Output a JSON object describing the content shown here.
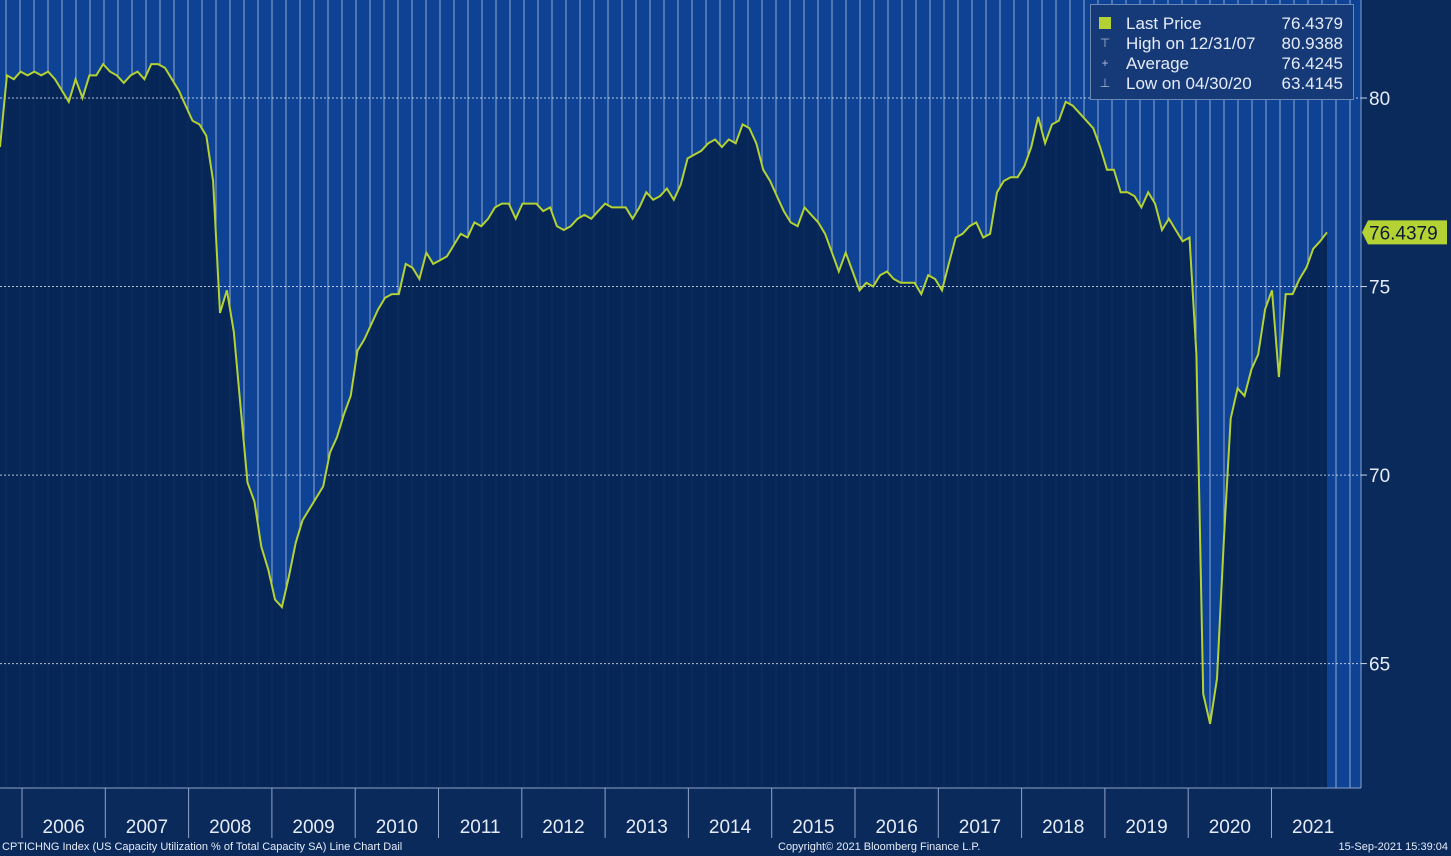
{
  "chart_data": {
    "type": "area",
    "series": [
      {
        "name": "Last Price",
        "color": "#b4d233",
        "values": [
          78.7,
          80.6,
          80.5,
          80.7,
          80.6,
          80.7,
          80.6,
          80.7,
          80.5,
          80.2,
          79.9,
          80.5,
          80.0,
          80.6,
          80.6,
          80.9,
          80.7,
          80.6,
          80.4,
          80.6,
          80.7,
          80.5,
          80.9,
          80.9,
          80.8,
          80.5,
          80.2,
          79.8,
          79.4,
          79.3,
          79.0,
          77.8,
          74.3,
          74.9,
          73.8,
          71.8,
          69.8,
          69.3,
          68.1,
          67.5,
          66.7,
          66.5,
          67.3,
          68.2,
          68.8,
          69.1,
          69.4,
          69.7,
          70.6,
          71.0,
          71.6,
          72.1,
          73.3,
          73.6,
          74.0,
          74.4,
          74.7,
          74.8,
          74.8,
          75.6,
          75.5,
          75.2,
          75.9,
          75.6,
          75.7,
          75.8,
          76.1,
          76.4,
          76.3,
          76.7,
          76.6,
          76.8,
          77.1,
          77.2,
          77.2,
          76.8,
          77.2,
          77.2,
          77.2,
          77.0,
          77.1,
          76.6,
          76.5,
          76.6,
          76.8,
          76.9,
          76.8,
          77.0,
          77.2,
          77.1,
          77.1,
          77.1,
          76.8,
          77.1,
          77.5,
          77.3,
          77.4,
          77.6,
          77.3,
          77.7,
          78.4,
          78.5,
          78.6,
          78.8,
          78.9,
          78.7,
          78.9,
          78.8,
          79.3,
          79.2,
          78.8,
          78.1,
          77.8,
          77.4,
          77.0,
          76.7,
          76.6,
          77.1,
          76.9,
          76.7,
          76.4,
          75.9,
          75.4,
          75.9,
          75.4,
          74.9,
          75.1,
          75.0,
          75.3,
          75.4,
          75.2,
          75.1,
          75.1,
          75.1,
          74.8,
          75.3,
          75.2,
          74.9,
          75.6,
          76.3,
          76.4,
          76.6,
          76.7,
          76.3,
          76.4,
          77.5,
          77.8,
          77.9,
          77.9,
          78.2,
          78.7,
          79.5,
          78.8,
          79.3,
          79.4,
          79.9,
          79.8,
          79.6,
          79.4,
          79.2,
          78.7,
          78.1,
          78.1,
          77.5,
          77.5,
          77.4,
          77.1,
          77.5,
          77.2,
          76.5,
          76.8,
          76.5,
          76.2,
          76.3,
          73.2,
          64.2,
          63.4,
          64.6,
          68.3,
          71.5,
          72.3,
          72.1,
          72.8,
          73.2,
          74.4,
          74.9,
          72.6,
          74.8,
          74.8,
          75.2,
          75.5,
          76.0,
          76.2,
          76.4379
        ]
      }
    ],
    "x_start_year": 2006,
    "x_end_year": 2021,
    "x_tick_labels": [
      "2006",
      "2007",
      "2008",
      "2009",
      "2010",
      "2011",
      "2012",
      "2013",
      "2014",
      "2015",
      "2016",
      "2017",
      "2018",
      "2019",
      "2020",
      "2021"
    ],
    "y_tick_labels": [
      "65",
      "70",
      "75",
      "80"
    ],
    "ylim": [
      61.7,
      82.6
    ],
    "grid": true,
    "last_value_tag": "76.4379",
    "colors": {
      "plot_background": "#0d4294",
      "area_fill": "#062554",
      "line": "#b4d233",
      "axis_background": "#0b2a5c",
      "text": "#e6ecf7"
    }
  },
  "legend": {
    "rows": [
      {
        "label": "Last Price",
        "value": "76.4379",
        "icon": "square-icon"
      },
      {
        "label": "High on 12/31/07",
        "value": "80.9388",
        "icon": "high-marker-icon"
      },
      {
        "label": "Average",
        "value": "76.4245",
        "icon": "average-marker-icon"
      },
      {
        "label": "Low on 04/30/20",
        "value": "63.4145",
        "icon": "low-marker-icon"
      }
    ]
  },
  "footer": {
    "description": "CPTICHNG Index (US Capacity Utilization % of Total Capacity SA) Line Chart  Dail",
    "copyright": "Copyright© 2021 Bloomberg Finance L.P.",
    "timestamp": "15-Sep-2021 15:39:04"
  }
}
